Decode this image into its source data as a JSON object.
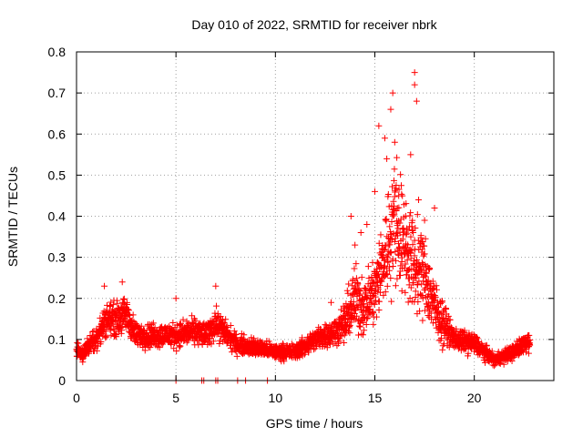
{
  "chart_data": {
    "type": "scatter",
    "title": "Day 010 of 2022, SRMTID for receiver nbrk",
    "xlabel": "GPS time / hours",
    "ylabel": "SRMTID / TECUs",
    "xlim": [
      0,
      24
    ],
    "ylim": [
      0,
      0.8
    ],
    "xticks": [
      0,
      5,
      10,
      15,
      20
    ],
    "xtick_labels": [
      "0",
      "5",
      "10",
      "15",
      "20"
    ],
    "yticks": [
      0,
      0.1,
      0.2,
      0.3,
      0.4,
      0.5,
      0.6,
      0.7,
      0.8
    ],
    "ytick_labels": [
      "0",
      "0.1",
      "0.2",
      "0.3",
      "0.4",
      "0.5",
      "0.6",
      "0.7",
      "0.8"
    ],
    "grid": true,
    "marker": "plus",
    "color": "#ff0000",
    "series": [
      {
        "name": "SRMTID",
        "profile_x": [
          0.0,
          0.3,
          0.5,
          1.0,
          1.5,
          2.0,
          2.5,
          3.0,
          4.0,
          5.0,
          6.0,
          6.5,
          7.0,
          8.0,
          9.0,
          10.0,
          11.0,
          12.0,
          13.0,
          13.5,
          14.0,
          14.5,
          15.0,
          15.5,
          16.0,
          16.5,
          17.0,
          17.5,
          18.0,
          18.3,
          19.0,
          20.0,
          20.5,
          21.0,
          22.0,
          22.5,
          22.8
        ],
        "profile_y": [
          0.08,
          0.06,
          0.08,
          0.1,
          0.15,
          0.15,
          0.16,
          0.11,
          0.11,
          0.11,
          0.12,
          0.11,
          0.14,
          0.09,
          0.08,
          0.07,
          0.07,
          0.1,
          0.12,
          0.14,
          0.2,
          0.18,
          0.22,
          0.3,
          0.4,
          0.33,
          0.28,
          0.26,
          0.18,
          0.15,
          0.1,
          0.09,
          0.07,
          0.05,
          0.07,
          0.09,
          0.1
        ],
        "spikes": [
          [
            13.8,
            0.4
          ],
          [
            14.0,
            0.33
          ],
          [
            14.3,
            0.36
          ],
          [
            14.6,
            0.38
          ],
          [
            15.0,
            0.46
          ],
          [
            15.2,
            0.62
          ],
          [
            15.5,
            0.59
          ],
          [
            15.6,
            0.54
          ],
          [
            15.8,
            0.66
          ],
          [
            15.9,
            0.7
          ],
          [
            16.0,
            0.58
          ],
          [
            16.2,
            0.45
          ],
          [
            16.6,
            0.37
          ],
          [
            16.8,
            0.55
          ],
          [
            17.0,
            0.75
          ],
          [
            17.0,
            0.72
          ],
          [
            17.1,
            0.68
          ],
          [
            17.2,
            0.44
          ],
          [
            17.5,
            0.39
          ],
          [
            18.0,
            0.42
          ],
          [
            2.3,
            0.24
          ],
          [
            1.4,
            0.23
          ],
          [
            7.0,
            0.23
          ],
          [
            5.0,
            0.2
          ],
          [
            12.8,
            0.19
          ]
        ],
        "zeros": [
          5.0,
          6.3,
          6.4,
          7.0,
          7.1,
          8.1,
          8.5,
          9.6
        ]
      }
    ]
  }
}
